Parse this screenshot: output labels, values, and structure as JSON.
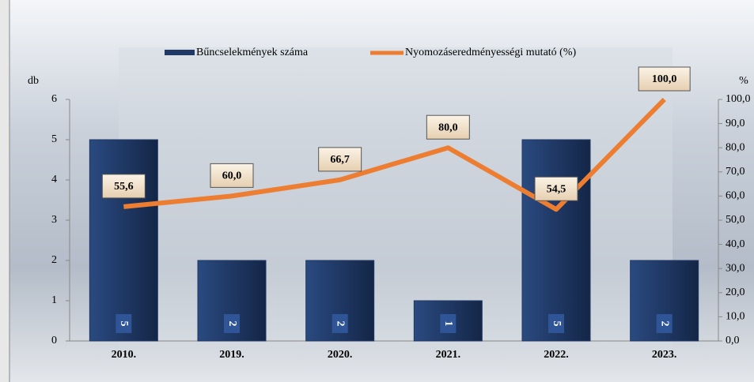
{
  "chart_data": {
    "type": "bar-line",
    "categories": [
      "2010.",
      "2019.",
      "2020.",
      "2021.",
      "2022.",
      "2023."
    ],
    "series": [
      {
        "name": "Bűncselekmények száma",
        "type": "bar",
        "color": "#1f3864",
        "values": [
          5,
          2,
          2,
          1,
          5,
          2
        ]
      },
      {
        "name": "Nyomozáseredményességi mutató (%)",
        "type": "line",
        "axis": "y2",
        "color": "#ed7d31",
        "values": [
          55.6,
          60.0,
          66.7,
          80.0,
          54.5,
          100.0
        ],
        "value_labels": [
          "55,6",
          "60,0",
          "66,7",
          "80,0",
          "54,5",
          "100,0"
        ]
      }
    ],
    "ylabel": "db",
    "y2label": "%",
    "ylim": [
      0,
      6
    ],
    "yticks": [
      0,
      1,
      2,
      3,
      4,
      5,
      6
    ],
    "y2lim": [
      0,
      100
    ],
    "y2ticks": [
      {
        "value": 0,
        "label": "0,0"
      },
      {
        "value": 10,
        "label": "10,0"
      },
      {
        "value": 20,
        "label": "20,0"
      },
      {
        "value": 30,
        "label": "30,0"
      },
      {
        "value": 40,
        "label": "40,0"
      },
      {
        "value": 50,
        "label": "50,0"
      },
      {
        "value": 60,
        "label": "60,0"
      },
      {
        "value": 70,
        "label": "70,0"
      },
      {
        "value": 80,
        "label": "80,0"
      },
      {
        "value": 90,
        "label": "90,0"
      },
      {
        "value": 100,
        "label": "100,0"
      }
    ],
    "legend": "top"
  }
}
